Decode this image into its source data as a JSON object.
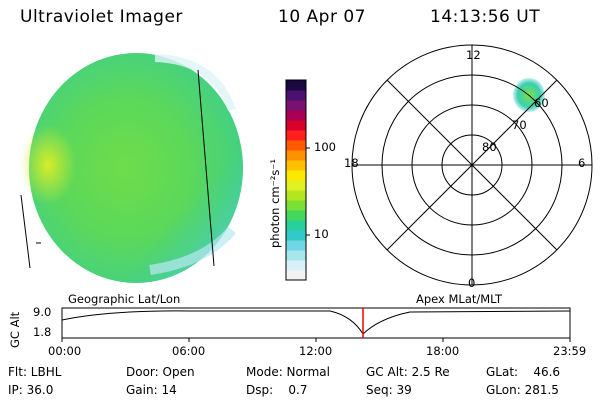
{
  "header": {
    "instrument": "Ultraviolet Imager",
    "date": "10 Apr 07",
    "time": "14:13:56 UT"
  },
  "colorbar": {
    "unit_label": "photon cm⁻²s⁻¹",
    "ticks": [
      "100",
      "10"
    ],
    "colors": [
      "#f2f2f2",
      "#d8f0f6",
      "#a8e6ee",
      "#6fd6e6",
      "#33c9c9",
      "#27cf9a",
      "#43d75c",
      "#7bdf35",
      "#b3e61f",
      "#e0f020",
      "#ffe800",
      "#ffc000",
      "#ff9000",
      "#ff5a00",
      "#ff1f1f",
      "#d8002a",
      "#a80054",
      "#7a1070",
      "#4a1070",
      "#1a0840"
    ]
  },
  "polar_plot": {
    "mlt_labels": {
      "top": "12",
      "left": "18",
      "right": "6",
      "bottom": "0"
    },
    "lat_labels": [
      "80",
      "70",
      "60"
    ]
  },
  "footer_labels": {
    "left": "Geographic Lat/Lon",
    "right": "Apex MLat/MLT"
  },
  "altitude_plot": {
    "axis_label": "GC Alt",
    "y_ticks": [
      "9.0",
      "1.8"
    ],
    "x_ticks": [
      "00:00",
      "06:00",
      "12:00",
      "18:00",
      "23:59"
    ],
    "marker_color": "#ff0000"
  },
  "status": {
    "flt": "Flt: LBHL",
    "ip": "IP: 36.0",
    "door": "Door: Open",
    "gain": "Gain: 14",
    "mode": "Mode: Normal",
    "dsp": "Dsp:    0.7",
    "gcalt": "GC Alt: 2.5 Re",
    "seq": "Seq: 39",
    "glat": "GLat:    46.6",
    "glon": "GLon: 281.5"
  }
}
